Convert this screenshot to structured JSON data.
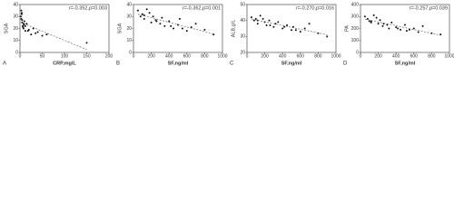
{
  "chart_data": [
    {
      "type": "scatter",
      "panel": "A",
      "annotation": "r=-0.352,p=0.003",
      "xlabel": "CRP,mg/L",
      "ylabel": "SGA",
      "x": [
        2,
        3,
        5,
        4,
        6,
        8,
        10,
        12,
        15,
        3,
        7,
        20,
        25,
        30,
        5,
        9,
        40,
        50,
        60,
        4,
        12,
        18,
        150,
        35,
        8
      ],
      "y": [
        30,
        28,
        25,
        32,
        22,
        20,
        26,
        18,
        24,
        35,
        21,
        19,
        15,
        20,
        27,
        23,
        17,
        14,
        15,
        33,
        22,
        18,
        8,
        16,
        24
      ],
      "xlim": [
        0,
        200
      ],
      "xticks": [
        0,
        50,
        100,
        150,
        200
      ],
      "ylim": [
        0,
        40
      ],
      "yticks": [
        0,
        10,
        20,
        30,
        40
      ],
      "color": "#111111"
    },
    {
      "type": "scatter",
      "panel": "B",
      "annotation": "r=-0.362,p=0.001",
      "xlabel": "SF,ng/ml",
      "ylabel": "SGA",
      "x": [
        50,
        80,
        100,
        120,
        150,
        200,
        220,
        250,
        300,
        320,
        350,
        400,
        450,
        500,
        520,
        600,
        650,
        700,
        800,
        900,
        180,
        260,
        420,
        550,
        120
      ],
      "y": [
        35,
        30,
        32,
        28,
        36,
        25,
        30,
        27,
        24,
        29,
        22,
        26,
        20,
        23,
        28,
        18,
        21,
        24,
        19,
        15,
        33,
        26,
        22,
        20,
        31
      ],
      "xlim": [
        0,
        1000
      ],
      "xticks": [
        0,
        200,
        400,
        600,
        800,
        1000
      ],
      "ylim": [
        0,
        40
      ],
      "yticks": [
        0,
        10,
        20,
        30,
        40
      ],
      "color": "#111111"
    },
    {
      "type": "scatter",
      "panel": "C",
      "annotation": "r=-0.270,p=0.016",
      "xlabel": "SF,ng/ml",
      "ylabel": "ALB,g/L",
      "x": [
        50,
        80,
        100,
        120,
        150,
        200,
        220,
        250,
        300,
        320,
        350,
        400,
        450,
        500,
        520,
        600,
        650,
        700,
        800,
        900,
        180,
        260,
        420,
        550,
        120
      ],
      "y": [
        42,
        40,
        41,
        38,
        43,
        39,
        37,
        40,
        36,
        38,
        39,
        35,
        37,
        34,
        36,
        33,
        35,
        38,
        32,
        30,
        41,
        37,
        36,
        34,
        40
      ],
      "xlim": [
        0,
        1000
      ],
      "xticks": [
        0,
        200,
        400,
        600,
        800,
        1000
      ],
      "ylim": [
        20,
        50
      ],
      "yticks": [
        20,
        30,
        40,
        50
      ],
      "color": "#111111"
    },
    {
      "type": "scatter",
      "panel": "D",
      "annotation": "r=-0.257,p=0.039",
      "xlabel": "SF,ng/ml",
      "ylabel": "PA",
      "x": [
        50,
        80,
        100,
        120,
        150,
        200,
        220,
        250,
        300,
        320,
        350,
        400,
        450,
        500,
        520,
        600,
        650,
        700,
        800,
        900,
        180,
        260,
        420,
        550,
        120
      ],
      "y": [
        300,
        280,
        260,
        250,
        310,
        240,
        270,
        220,
        230,
        200,
        250,
        210,
        190,
        230,
        180,
        200,
        170,
        220,
        160,
        150,
        290,
        240,
        200,
        190,
        260
      ],
      "xlim": [
        0,
        1000
      ],
      "xticks": [
        0,
        200,
        400,
        600,
        800,
        1000
      ],
      "ylim": [
        0,
        400
      ],
      "yticks": [
        0,
        100,
        200,
        300,
        400
      ],
      "color": "#111111"
    }
  ]
}
